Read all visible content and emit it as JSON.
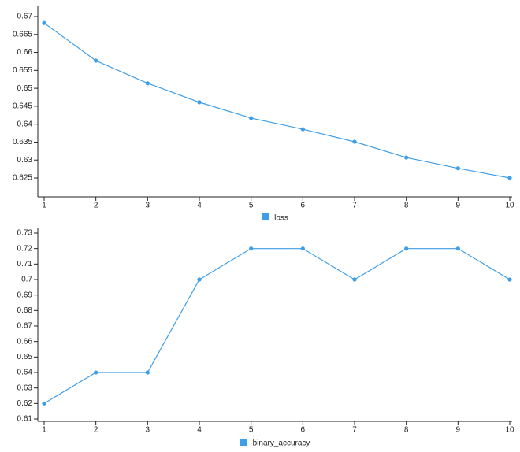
{
  "chart_data": [
    {
      "type": "line",
      "x": [
        1,
        2,
        3,
        4,
        5,
        6,
        7,
        8,
        9,
        10
      ],
      "xlim": [
        1,
        10
      ],
      "xticks": [
        1,
        2,
        3,
        4,
        5,
        6,
        7,
        8,
        9,
        10
      ],
      "ylim": [
        0.62,
        0.6725
      ],
      "yticks": [
        0.625,
        0.63,
        0.635,
        0.64,
        0.645,
        0.65,
        0.655,
        0.66,
        0.665,
        0.67
      ],
      "series": [
        {
          "name": "loss",
          "color": "#3e9ee8",
          "values": [
            0.6682,
            0.6577,
            0.6514,
            0.6461,
            0.6417,
            0.6386,
            0.6351,
            0.6307,
            0.6277,
            0.625
          ]
        }
      ]
    },
    {
      "type": "line",
      "x": [
        1,
        2,
        3,
        4,
        5,
        6,
        7,
        8,
        9,
        10
      ],
      "xlim": [
        1,
        10
      ],
      "xticks": [
        1,
        2,
        3,
        4,
        5,
        6,
        7,
        8,
        9,
        10
      ],
      "ylim": [
        0.61,
        0.73
      ],
      "yticks": [
        0.61,
        0.62,
        0.63,
        0.64,
        0.65,
        0.66,
        0.67,
        0.68,
        0.69,
        0.7,
        0.71,
        0.72,
        0.73
      ],
      "series": [
        {
          "name": "binary_accuracy",
          "color": "#3e9ee8",
          "values": [
            0.62,
            0.64,
            0.64,
            0.7,
            0.72,
            0.72,
            0.7,
            0.72,
            0.72,
            0.7
          ]
        }
      ]
    }
  ]
}
